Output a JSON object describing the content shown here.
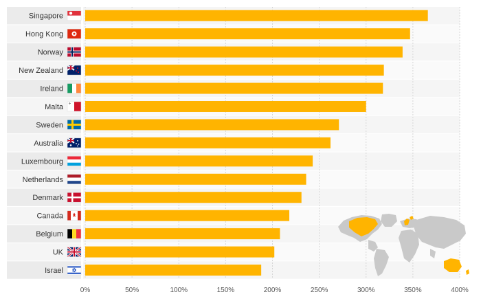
{
  "chart_data": {
    "type": "bar",
    "orientation": "horizontal",
    "title": "",
    "xlabel": "",
    "ylabel": "",
    "xlim": [
      0,
      400
    ],
    "ticks": [
      "0%",
      "50%",
      "100%",
      "150%",
      "200%",
      "250%",
      "300%",
      "350%",
      "400%"
    ],
    "tick_values": [
      0,
      50,
      100,
      150,
      200,
      250,
      300,
      350,
      400
    ],
    "categories": [
      "Singapore",
      "Hong Kong",
      "Norway",
      "New Zealand",
      "Ireland",
      "Malta",
      "Sweden",
      "Australia",
      "Luxembourg",
      "Netherlands",
      "Denmark",
      "Canada",
      "Belgium",
      "UK",
      "Israel"
    ],
    "values": [
      366,
      347,
      339,
      319,
      318,
      300,
      271,
      262,
      243,
      236,
      231,
      218,
      208,
      202,
      188
    ],
    "grid": true,
    "legend": "none"
  },
  "colors": {
    "bar": "#ffb400",
    "row_shade": "#ebebeb",
    "row_light": "#f5f5f5",
    "label": "#333333",
    "tick": "#555555",
    "grid": "#d6d6d6",
    "map_land": "#c9c9c9",
    "map_highlight": "#ffb400"
  },
  "flag_icons": [
    "singapore-flag-icon",
    "hong-kong-flag-icon",
    "norway-flag-icon",
    "new-zealand-flag-icon",
    "ireland-flag-icon",
    "malta-flag-icon",
    "sweden-flag-icon",
    "australia-flag-icon",
    "luxembourg-flag-icon",
    "netherlands-flag-icon",
    "denmark-flag-icon",
    "canada-flag-icon",
    "belgium-flag-icon",
    "uk-flag-icon",
    "israel-flag-icon"
  ]
}
